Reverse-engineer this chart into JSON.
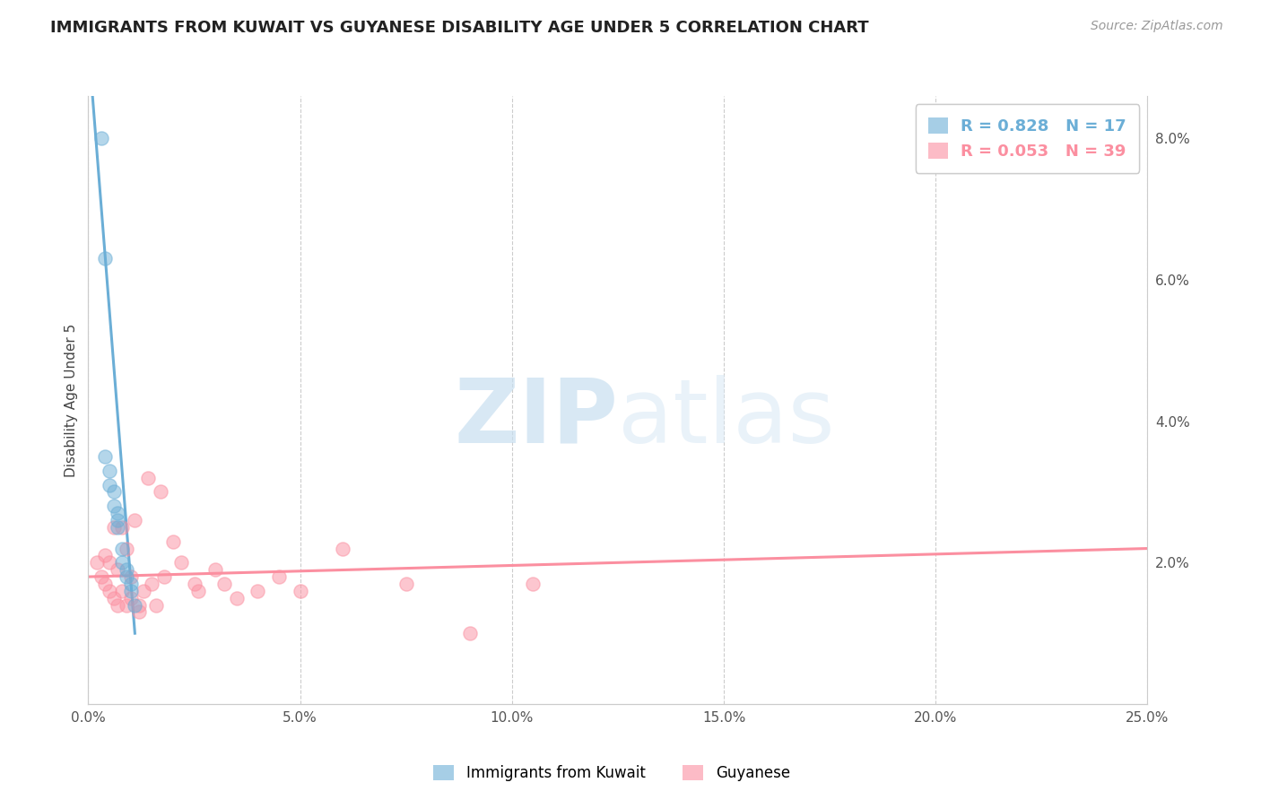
{
  "title": "IMMIGRANTS FROM KUWAIT VS GUYANESE DISABILITY AGE UNDER 5 CORRELATION CHART",
  "source_text": "Source: ZipAtlas.com",
  "ylabel": "Disability Age Under 5",
  "xlim": [
    0.0,
    0.25
  ],
  "ylim": [
    0.0,
    0.086
  ],
  "xticks": [
    0.0,
    0.05,
    0.1,
    0.15,
    0.2,
    0.25
  ],
  "xticklabels": [
    "0.0%",
    "5.0%",
    "10.0%",
    "15.0%",
    "20.0%",
    "25.0%"
  ],
  "yticks": [
    0.0,
    0.02,
    0.04,
    0.06,
    0.08
  ],
  "yticklabels_right": [
    "",
    "2.0%",
    "4.0%",
    "6.0%",
    "8.0%"
  ],
  "legend_top": [
    {
      "label": "R = 0.828",
      "n_label": "N = 17",
      "color": "#6baed6"
    },
    {
      "label": "R = 0.053",
      "n_label": "N = 39",
      "color": "#fb8fa0"
    }
  ],
  "legend_bottom": [
    {
      "label": "Immigrants from Kuwait",
      "color": "#6baed6"
    },
    {
      "label": "Guyanese",
      "color": "#fb8fa0"
    }
  ],
  "kuwait_x": [
    0.003,
    0.004,
    0.004,
    0.005,
    0.005,
    0.006,
    0.006,
    0.007,
    0.007,
    0.007,
    0.008,
    0.008,
    0.009,
    0.009,
    0.01,
    0.01,
    0.011
  ],
  "kuwait_y": [
    0.08,
    0.063,
    0.035,
    0.033,
    0.031,
    0.03,
    0.028,
    0.027,
    0.026,
    0.025,
    0.022,
    0.02,
    0.019,
    0.018,
    0.017,
    0.016,
    0.014
  ],
  "kuwait_color": "#6baed6",
  "kuwait_trend_x": [
    0.001,
    0.011
  ],
  "kuwait_trend_y": [
    0.086,
    0.01
  ],
  "guyanese_x": [
    0.002,
    0.003,
    0.004,
    0.004,
    0.005,
    0.005,
    0.006,
    0.006,
    0.007,
    0.007,
    0.008,
    0.008,
    0.009,
    0.009,
    0.01,
    0.01,
    0.011,
    0.012,
    0.012,
    0.013,
    0.014,
    0.015,
    0.016,
    0.017,
    0.018,
    0.02,
    0.022,
    0.025,
    0.026,
    0.03,
    0.032,
    0.035,
    0.04,
    0.045,
    0.05,
    0.06,
    0.075,
    0.09,
    0.105
  ],
  "guyanese_y": [
    0.02,
    0.018,
    0.017,
    0.021,
    0.016,
    0.02,
    0.025,
    0.015,
    0.019,
    0.014,
    0.025,
    0.016,
    0.022,
    0.014,
    0.018,
    0.015,
    0.026,
    0.014,
    0.013,
    0.016,
    0.032,
    0.017,
    0.014,
    0.03,
    0.018,
    0.023,
    0.02,
    0.017,
    0.016,
    0.019,
    0.017,
    0.015,
    0.016,
    0.018,
    0.016,
    0.022,
    0.017,
    0.01,
    0.017
  ],
  "guyanese_color": "#fb8fa0",
  "guyanese_trend_x": [
    0.0,
    0.25
  ],
  "guyanese_trend_y": [
    0.018,
    0.022
  ],
  "watermark_zip": "ZIP",
  "watermark_atlas": "atlas",
  "background_color": "#ffffff",
  "grid_color": "#cccccc",
  "title_color": "#222222",
  "source_color": "#999999"
}
